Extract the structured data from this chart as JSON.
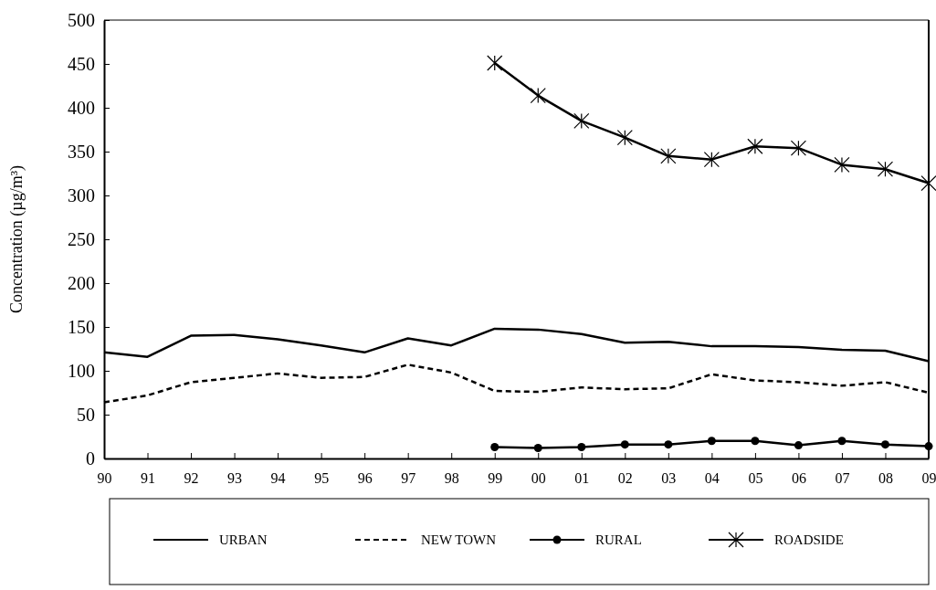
{
  "chart_data": {
    "type": "line",
    "ylabel": "Concentration (µg/m³)",
    "categories": [
      "90",
      "91",
      "92",
      "93",
      "94",
      "95",
      "96",
      "97",
      "98",
      "99",
      "00",
      "01",
      "02",
      "03",
      "04",
      "05",
      "06",
      "07",
      "08",
      "09"
    ],
    "ylim": [
      0,
      500
    ],
    "yticks": [
      0,
      50,
      100,
      150,
      200,
      250,
      300,
      350,
      400,
      450,
      500
    ],
    "grid": false,
    "legend": "bottom",
    "series": [
      {
        "name": "URBAN",
        "color": "#000000",
        "line_style": "solid",
        "marker": "none",
        "values": [
          121,
          116,
          140,
          141,
          136,
          129,
          121,
          137,
          129,
          148,
          147,
          142,
          132,
          133,
          128,
          128,
          127,
          124,
          123,
          111
        ]
      },
      {
        "name": "NEW TOWN",
        "color": "#000000",
        "line_style": "dashed",
        "marker": "none",
        "values": [
          64,
          72,
          87,
          92,
          97,
          92,
          93,
          107,
          98,
          77,
          76,
          81,
          79,
          80,
          96,
          89,
          87,
          83,
          87,
          75
        ]
      },
      {
        "name": "RURAL",
        "color": "#000000",
        "line_style": "solid",
        "marker": "circle",
        "values": [
          null,
          null,
          null,
          null,
          null,
          null,
          null,
          null,
          null,
          13,
          12,
          13,
          16,
          16,
          20,
          20,
          15,
          20,
          16,
          14
        ]
      },
      {
        "name": "ROADSIDE",
        "color": "#000000",
        "line_style": "solid",
        "marker": "cross",
        "values": [
          null,
          null,
          null,
          null,
          null,
          null,
          null,
          null,
          null,
          451,
          414,
          385,
          366,
          345,
          341,
          356,
          354,
          335,
          330,
          314
        ]
      }
    ]
  }
}
